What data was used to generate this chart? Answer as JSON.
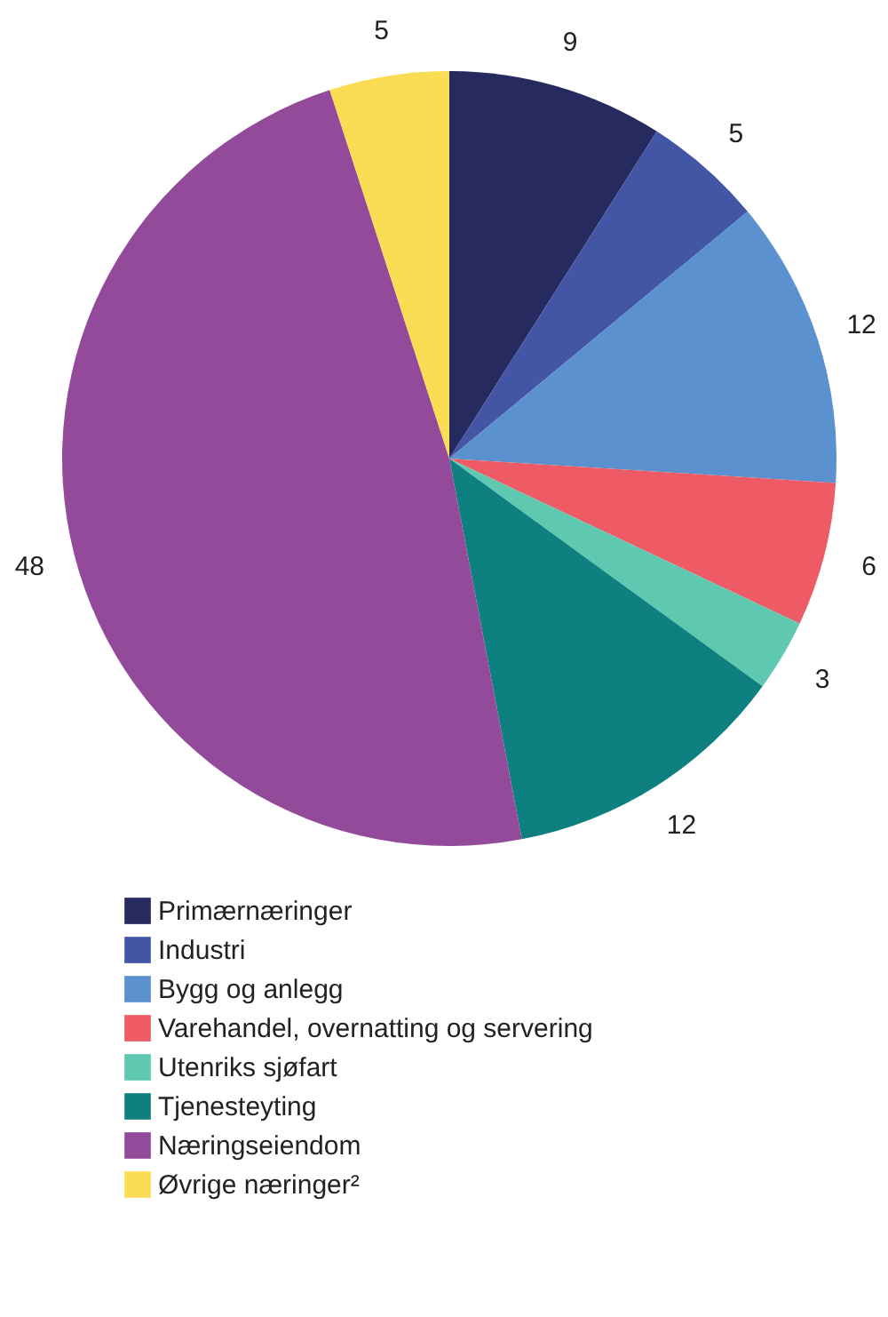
{
  "chart_data": {
    "type": "pie",
    "categories": [
      "Primærnæringer",
      "Industri",
      "Bygg og anlegg",
      "Varehandel, overnatting og servering",
      "Utenriks sjøfart",
      "Tjenesteyting",
      "Næringseiendom",
      "Øvrige næringer²"
    ],
    "values": [
      9,
      5,
      12,
      6,
      3,
      12,
      48,
      5
    ],
    "colors": [
      "#262a5e",
      "#4356a6",
      "#5b91cf",
      "#ef5b64",
      "#5ec8b0",
      "#0e8080",
      "#934a9b",
      "#fbdc55"
    ],
    "data_labels": true,
    "legend": "bottom"
  }
}
